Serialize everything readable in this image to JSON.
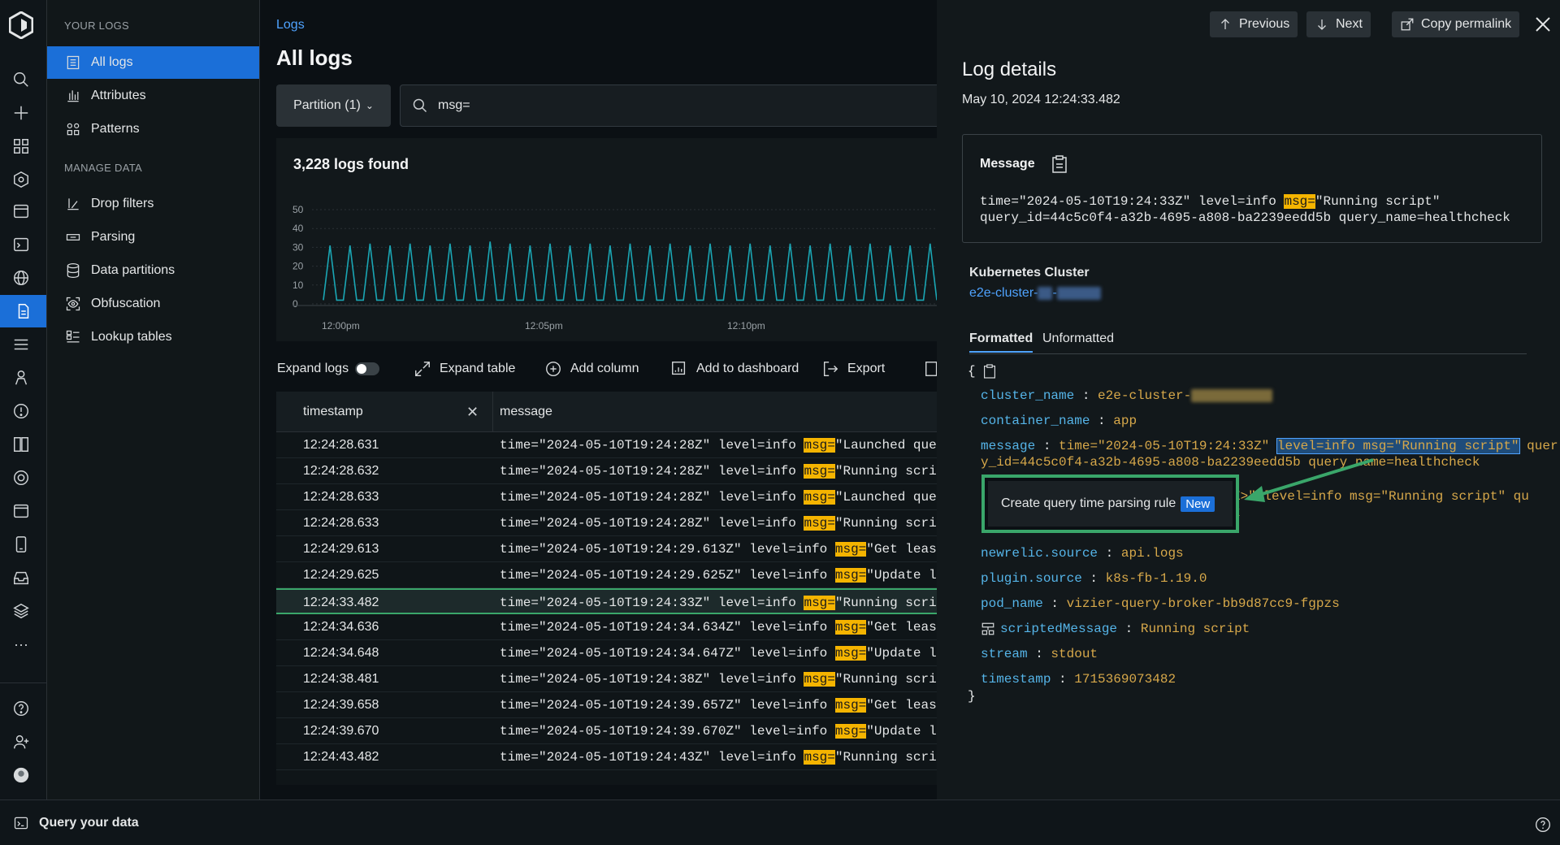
{
  "sidebar": {
    "section_your_logs": "YOUR LOGS",
    "section_manage": "MANAGE DATA",
    "items": [
      {
        "label": "All logs"
      },
      {
        "label": "Attributes"
      },
      {
        "label": "Patterns"
      },
      {
        "label": "Drop filters"
      },
      {
        "label": "Parsing"
      },
      {
        "label": "Data partitions"
      },
      {
        "label": "Obfuscation"
      },
      {
        "label": "Lookup tables"
      }
    ]
  },
  "main": {
    "breadcrumb": "Logs",
    "title": "All logs",
    "partition_label": "Partition (1)",
    "search_value": "msg=",
    "logs_found": "3,228 logs found",
    "toolbar": {
      "expand_logs": "Expand logs",
      "expand_table": "Expand table",
      "add_column": "Add column",
      "add_to_dashboard": "Add to dashboard",
      "export": "Export"
    },
    "table": {
      "col_timestamp": "timestamp",
      "col_message": "message",
      "rows": [
        {
          "ts": "12:24:28.631",
          "pre": "time=\"2024-05-10T19:24:28Z\" level=info ",
          "hl": "msg=",
          "post": "\"Launched query:"
        },
        {
          "ts": "12:24:28.632",
          "pre": "time=\"2024-05-10T19:24:28Z\" level=info ",
          "hl": "msg=",
          "post": "\"Running script\""
        },
        {
          "ts": "12:24:28.633",
          "pre": "time=\"2024-05-10T19:24:28Z\" level=info ",
          "hl": "msg=",
          "post": "\"Launched query:"
        },
        {
          "ts": "12:24:28.633",
          "pre": "time=\"2024-05-10T19:24:28Z\" level=info ",
          "hl": "msg=",
          "post": "\"Running script\""
        },
        {
          "ts": "12:24:29.613",
          "pre": "time=\"2024-05-10T19:24:29.613Z\" level=info ",
          "hl": "msg=",
          "post": "\"Get leases"
        },
        {
          "ts": "12:24:29.625",
          "pre": "time=\"2024-05-10T19:24:29.625Z\" level=info ",
          "hl": "msg=",
          "post": "\"Update leas"
        },
        {
          "ts": "12:24:33.482",
          "pre": "time=\"2024-05-10T19:24:33Z\" level=info ",
          "hl": "msg=",
          "post": "\"Running script\""
        },
        {
          "ts": "12:24:34.636",
          "pre": "time=\"2024-05-10T19:24:34.634Z\" level=info ",
          "hl": "msg=",
          "post": "\"Get leases"
        },
        {
          "ts": "12:24:34.648",
          "pre": "time=\"2024-05-10T19:24:34.647Z\" level=info ",
          "hl": "msg=",
          "post": "\"Update leas"
        },
        {
          "ts": "12:24:38.481",
          "pre": "time=\"2024-05-10T19:24:38Z\" level=info ",
          "hl": "msg=",
          "post": "\"Running script\""
        },
        {
          "ts": "12:24:39.658",
          "pre": "time=\"2024-05-10T19:24:39.657Z\" level=info ",
          "hl": "msg=",
          "post": "\"Get leases"
        },
        {
          "ts": "12:24:39.670",
          "pre": "time=\"2024-05-10T19:24:39.670Z\" level=info ",
          "hl": "msg=",
          "post": "\"Update leas"
        },
        {
          "ts": "12:24:43.482",
          "pre": "time=\"2024-05-10T19:24:43Z\" level=info ",
          "hl": "msg=",
          "post": "\"Running script\""
        }
      ]
    }
  },
  "chart_data": {
    "type": "line",
    "title": "",
    "xlabel": "",
    "ylabel": "",
    "y_ticks": [
      "50",
      "40",
      "30",
      "20",
      "10",
      "0"
    ],
    "x_ticks": [
      "12:00pm",
      "12:05pm",
      "12:10pm"
    ],
    "ylim": [
      0,
      50
    ],
    "grid": true,
    "series": [
      {
        "values": [
          2,
          31,
          2,
          2,
          31,
          2,
          2,
          32,
          2,
          2,
          31,
          2,
          2,
          32,
          2,
          2,
          31,
          2,
          2,
          32,
          2,
          2,
          31,
          2,
          2,
          33,
          2,
          2,
          32,
          2,
          2,
          31,
          2,
          2,
          32,
          2,
          2,
          31,
          2,
          2,
          32,
          2,
          2,
          31,
          2,
          2,
          32,
          2,
          2,
          31,
          2,
          2,
          32,
          2,
          2,
          31,
          2,
          2,
          32,
          2,
          2,
          31,
          2,
          2,
          32,
          2,
          2,
          31,
          2,
          2,
          32,
          2,
          2,
          31,
          2,
          2,
          32,
          2,
          2,
          31,
          2,
          2,
          32,
          2,
          2,
          31,
          2,
          2,
          31,
          2,
          2,
          32,
          2
        ]
      }
    ],
    "color": "#1aa6b4"
  },
  "details": {
    "previous": "Previous",
    "next": "Next",
    "copy_permalink": "Copy permalink",
    "title": "Log details",
    "date": "May 10, 2024 12:24:33.482",
    "message_label": "Message",
    "message_line1": "time=\"2024-05-10T19:24:33Z\" level=info msg=\"Running script\"",
    "message_line2": "query_id=44c5c0f4-a32b-4695-a808-ba2239eedd5b query_name=healthcheck",
    "message_pre": "time=\"2024-05-10T19:24:33Z\" level=info ",
    "message_hl": "msg=",
    "message_post": "\"Running script\"",
    "k8s_label": "Kubernetes Cluster",
    "k8s_value": "e2e-cluster-",
    "tab_formatted": "Formatted",
    "tab_unformatted": "Unformatted",
    "json_open": "{",
    "json_close": "}",
    "attrs": {
      "cluster_name": {
        "key": "cluster_name",
        "val": "e2e-cluster-"
      },
      "container_name": {
        "key": "container_name",
        "val": "app"
      },
      "message": {
        "key": "message",
        "val_pre": "time=\"2024-05-10T19:24:33Z\" ",
        "val_sel": "level=info msg=\"Running script\"",
        "val_post": " quer",
        "val_line2": "y_id=44c5c0f4-a32b-4695-a808-ba2239eedd5b query_name=healthcheck"
      },
      "partial_line1": "E>\" level=info msg=\"Running script\" qu",
      "partial_line2": "k",
      "newrelic_source": {
        "key": "newrelic.source",
        "val": "api.logs"
      },
      "plugin_source": {
        "key": "plugin.source",
        "val": "k8s-fb-1.19.0"
      },
      "pod_name": {
        "key": "pod_name",
        "val": "vizier-query-broker-bb9d87cc9-fgpzs"
      },
      "scripted_message": {
        "key": "scriptedMessage",
        "val": "Running script"
      },
      "stream": {
        "key": "stream",
        "val": "stdout"
      },
      "timestamp": {
        "key": "timestamp",
        "val": "1715369073482"
      }
    },
    "popup_label": "Create query time parsing rule",
    "popup_badge": "New"
  },
  "bottombar": {
    "query_label": "Query your data"
  },
  "colors": {
    "accent": "#1b6fd8",
    "highlight": "#f5b400",
    "callout": "#3aa66a",
    "link": "#4fa3ff"
  }
}
